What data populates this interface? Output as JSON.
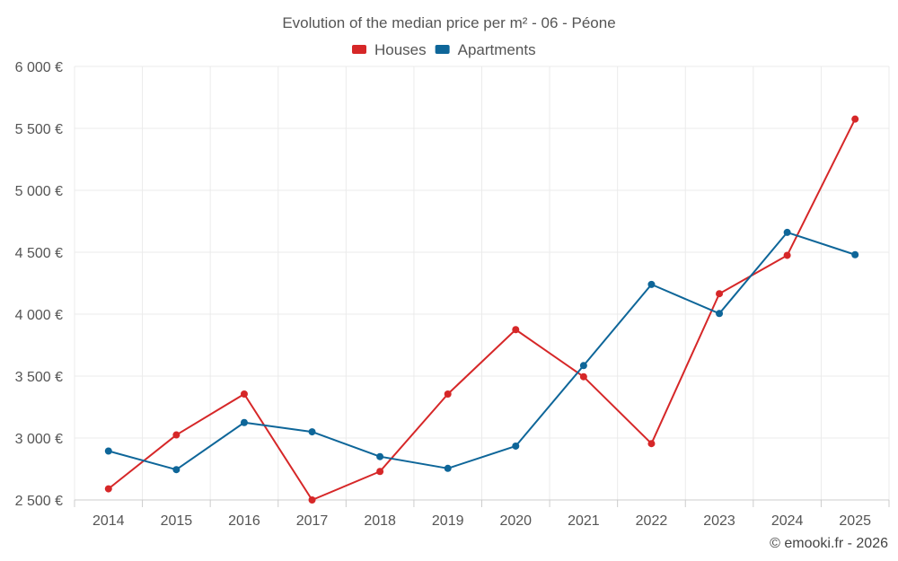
{
  "chart_data": {
    "type": "line",
    "title": "Evolution of the median price per m² - 06 - Péone",
    "categories": [
      "2014",
      "2015",
      "2016",
      "2017",
      "2018",
      "2019",
      "2020",
      "2021",
      "2022",
      "2023",
      "2024",
      "2025"
    ],
    "ylim": [
      2500,
      6000
    ],
    "yticks": [
      {
        "value": 2500,
        "label": "2 500 €"
      },
      {
        "value": 3000,
        "label": "3 000 €"
      },
      {
        "value": 3500,
        "label": "3 500 €"
      },
      {
        "value": 4000,
        "label": "4 000 €"
      },
      {
        "value": 4500,
        "label": "4 500 €"
      },
      {
        "value": 5000,
        "label": "5 000 €"
      },
      {
        "value": 5500,
        "label": "5 500 €"
      },
      {
        "value": 6000,
        "label": "6 000 €"
      }
    ],
    "series": [
      {
        "name": "Houses",
        "color": "#d62728",
        "values": [
          2590,
          3025,
          3355,
          2500,
          2730,
          3355,
          3875,
          3495,
          2955,
          4165,
          4475,
          5575
        ]
      },
      {
        "name": "Apartments",
        "color": "#0e6699",
        "values": [
          2895,
          2745,
          3125,
          3050,
          2850,
          2755,
          2935,
          3585,
          4240,
          4005,
          4660,
          4480
        ]
      }
    ],
    "legend": "top-center",
    "grid": true,
    "credit": "© emooki.fr - 2026"
  }
}
